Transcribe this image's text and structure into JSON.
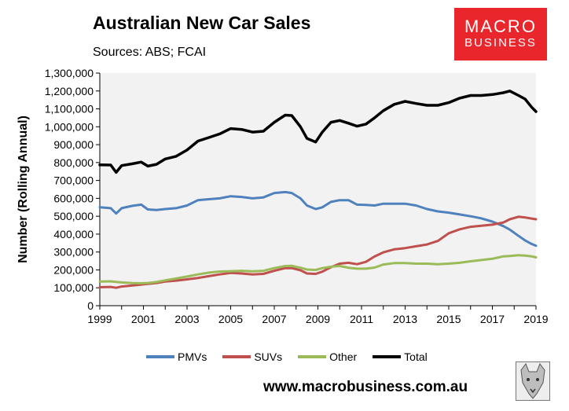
{
  "header": {
    "title": "Australian New Car Sales",
    "subtitle": "Sources: ABS; FCAI"
  },
  "logo": {
    "line1": "MACRO",
    "line2": "BUSINESS",
    "color": "#e8262b"
  },
  "footer": {
    "url": "www.macrobusiness.com.au"
  },
  "colors": {
    "plot_background": "#f2f2f2"
  },
  "chart_data": {
    "type": "line",
    "title": "Australian New Car Sales",
    "xlabel": "",
    "ylabel": "Number (Rolling Annual)",
    "xlim": [
      1999,
      2019
    ],
    "ylim": [
      0,
      1300000
    ],
    "ytick_step": 100000,
    "yticks": [
      "0",
      "100,000",
      "200,000",
      "300,000",
      "400,000",
      "500,000",
      "600,000",
      "700,000",
      "800,000",
      "900,000",
      "1,000,000",
      "1,100,000",
      "1,200,000",
      "1,300,000"
    ],
    "xticks": [
      "1999",
      "2001",
      "2003",
      "2005",
      "2007",
      "2009",
      "2011",
      "2013",
      "2015",
      "2017",
      "2019"
    ],
    "grid": false,
    "legend_position": "bottom",
    "x": [
      1999.0,
      1999.5,
      1999.75,
      2000.0,
      2000.5,
      2000.9,
      2001.2,
      2001.6,
      2002.0,
      2002.5,
      2003.0,
      2003.5,
      2004.0,
      2004.5,
      2005.0,
      2005.5,
      2006.0,
      2006.5,
      2007.0,
      2007.5,
      2007.8,
      2008.2,
      2008.5,
      2008.9,
      2009.2,
      2009.6,
      2010.0,
      2010.4,
      2010.8,
      2011.2,
      2011.6,
      2012.0,
      2012.5,
      2013.0,
      2013.5,
      2014.0,
      2014.5,
      2015.0,
      2015.5,
      2016.0,
      2016.5,
      2017.0,
      2017.5,
      2017.8,
      2018.2,
      2018.5,
      2018.8,
      2019.0
    ],
    "series": [
      {
        "name": "PMVs",
        "color": "#4f81bd",
        "values": [
          550000,
          545000,
          515000,
          545000,
          558000,
          565000,
          538000,
          535000,
          540000,
          545000,
          560000,
          590000,
          595000,
          600000,
          612000,
          608000,
          600000,
          605000,
          630000,
          635000,
          630000,
          600000,
          560000,
          540000,
          550000,
          580000,
          590000,
          590000,
          565000,
          563000,
          560000,
          570000,
          570000,
          570000,
          560000,
          540000,
          527000,
          520000,
          510000,
          500000,
          488000,
          470000,
          445000,
          425000,
          390000,
          365000,
          345000,
          335000
        ]
      },
      {
        "name": "SUVs",
        "color": "#c0504d",
        "values": [
          103000,
          105000,
          100000,
          107000,
          113000,
          118000,
          122000,
          127000,
          135000,
          140000,
          147000,
          155000,
          165000,
          175000,
          183000,
          180000,
          175000,
          178000,
          195000,
          210000,
          210000,
          198000,
          180000,
          178000,
          190000,
          215000,
          235000,
          240000,
          232000,
          245000,
          275000,
          298000,
          315000,
          322000,
          332000,
          342000,
          362000,
          405000,
          427000,
          441000,
          447000,
          453000,
          465000,
          483000,
          497000,
          493000,
          487000,
          483000
        ]
      },
      {
        "name": "Other",
        "color": "#9bbb59",
        "values": [
          135000,
          136000,
          133000,
          130000,
          126000,
          125000,
          127000,
          132000,
          142000,
          152000,
          163000,
          175000,
          185000,
          191000,
          193000,
          195000,
          192000,
          195000,
          210000,
          222000,
          223000,
          212000,
          202000,
          200000,
          210000,
          218000,
          222000,
          212000,
          207000,
          207000,
          213000,
          230000,
          238000,
          238000,
          235000,
          235000,
          232000,
          235000,
          240000,
          248000,
          255000,
          262000,
          276000,
          278000,
          282000,
          280000,
          276000,
          270000
        ]
      },
      {
        "name": "Total",
        "color": "#000000",
        "values": [
          787000,
          786000,
          745000,
          783000,
          793000,
          803000,
          780000,
          790000,
          820000,
          835000,
          870000,
          920000,
          940000,
          960000,
          990000,
          985000,
          970000,
          975000,
          1025000,
          1065000,
          1063000,
          1000000,
          935000,
          915000,
          970000,
          1025000,
          1035000,
          1020000,
          1003000,
          1015000,
          1050000,
          1090000,
          1125000,
          1142000,
          1130000,
          1120000,
          1120000,
          1135000,
          1160000,
          1175000,
          1175000,
          1180000,
          1190000,
          1200000,
          1175000,
          1155000,
          1110000,
          1085000
        ]
      }
    ]
  }
}
